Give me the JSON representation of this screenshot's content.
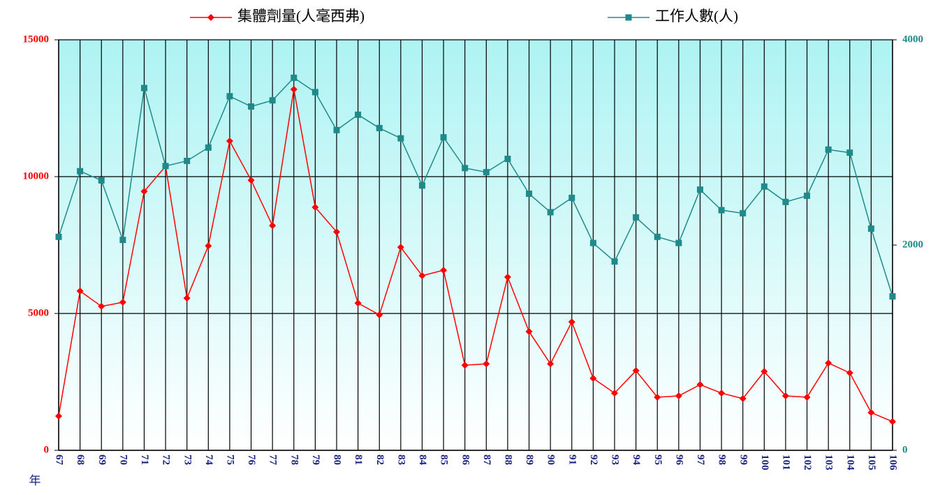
{
  "chart_data": {
    "type": "line",
    "xlabel": "年",
    "categories": [
      "67",
      "68",
      "69",
      "70",
      "71",
      "72",
      "73",
      "74",
      "75",
      "76",
      "77",
      "78",
      "79",
      "80",
      "81",
      "82",
      "83",
      "84",
      "85",
      "86",
      "87",
      "88",
      "89",
      "90",
      "91",
      "92",
      "93",
      "94",
      "95",
      "96",
      "97",
      "98",
      "99",
      "100",
      "101",
      "102",
      "103",
      "104",
      "105",
      "106"
    ],
    "series": [
      {
        "name": "集體劑量(人毫西弗)",
        "color": "#ff0000",
        "marker": "diamond",
        "values": [
          1250,
          5820,
          5260,
          5410,
          9460,
          10380,
          5560,
          7470,
          11300,
          9870,
          8210,
          13190,
          8880,
          7980,
          5380,
          4950,
          7420,
          6380,
          6580,
          3110,
          3160,
          6330,
          4340,
          3160,
          4690,
          2630,
          2090,
          2910,
          1940,
          1990,
          2400,
          2090,
          1890,
          2880,
          1990,
          1940,
          3190,
          2830,
          1380,
          1050
        ]
      },
      {
        "name": "工作人數(人)",
        "color": "#1f8a8a",
        "marker": "square",
        "axis": "y2",
        "values": [
          2080,
          2720,
          2630,
          2050,
          3530,
          2770,
          2820,
          2950,
          3450,
          3350,
          3410,
          3630,
          3490,
          3120,
          3270,
          3140,
          3040,
          2580,
          3050,
          2750,
          2710,
          2840,
          2500,
          2320,
          2460,
          2020,
          1840,
          2270,
          2080,
          2020,
          2540,
          2340,
          2310,
          2570,
          2420,
          2480,
          2930,
          2900,
          2160,
          1500
        ]
      }
    ],
    "ylim": [
      0,
      15000
    ],
    "yticks": [
      0,
      5000,
      10000,
      15000
    ],
    "y2lim": [
      0,
      4000
    ],
    "y2ticks": [
      0,
      2000,
      4000
    ],
    "grid": true,
    "legend": "top"
  }
}
